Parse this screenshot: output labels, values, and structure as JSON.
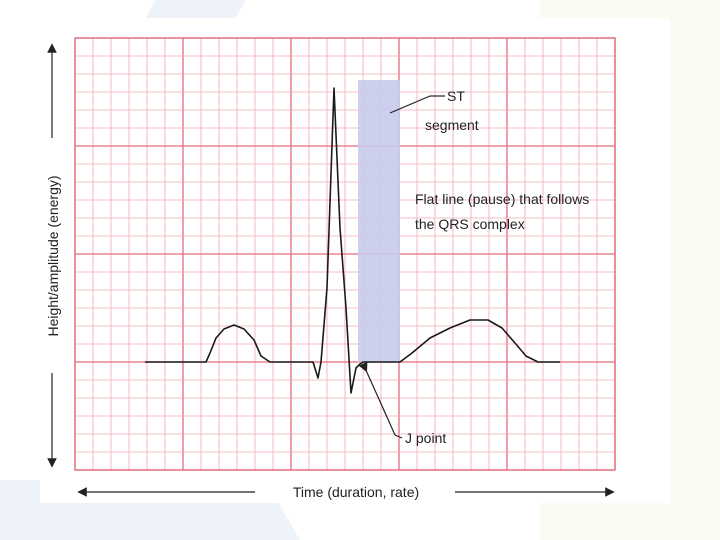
{
  "axes": {
    "y_label": "Height/amplitude (energy)",
    "x_label": "Time (duration, rate)"
  },
  "annotations": {
    "st_segment_line1": "ST",
    "st_segment_line2": "segment",
    "flat_line_line1": "Flat line (pause) that follows",
    "flat_line_line2": "the QRS complex",
    "j_point": "J point"
  },
  "colors": {
    "grid_minor": "#f2a9b3",
    "grid_major": "#e56c7b",
    "highlight": "#c8cbea",
    "trace": "#1a1a1a"
  }
}
